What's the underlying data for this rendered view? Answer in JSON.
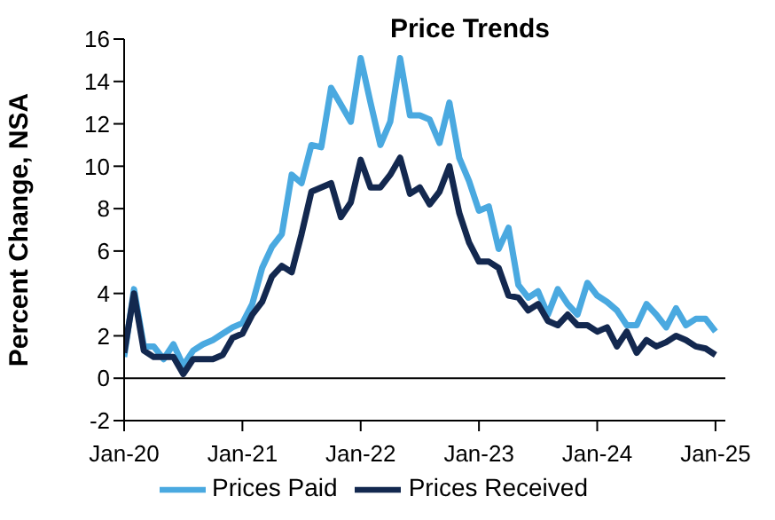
{
  "chart_data": {
    "type": "line",
    "title": "Price Trends",
    "ylabel": "Percent Change, NSA",
    "x": [
      "2020-01",
      "2020-02",
      "2020-03",
      "2020-04",
      "2020-05",
      "2020-06",
      "2020-07",
      "2020-08",
      "2020-09",
      "2020-10",
      "2020-11",
      "2020-12",
      "2021-01",
      "2021-02",
      "2021-03",
      "2021-04",
      "2021-05",
      "2021-06",
      "2021-07",
      "2021-08",
      "2021-09",
      "2021-10",
      "2021-11",
      "2021-12",
      "2022-01",
      "2022-02",
      "2022-03",
      "2022-04",
      "2022-05",
      "2022-06",
      "2022-07",
      "2022-08",
      "2022-09",
      "2022-10",
      "2022-11",
      "2022-12",
      "2023-01",
      "2023-02",
      "2023-03",
      "2023-04",
      "2023-05",
      "2023-06",
      "2023-07",
      "2023-08",
      "2023-09",
      "2023-10",
      "2023-11",
      "2023-12",
      "2024-01",
      "2024-02",
      "2024-03",
      "2024-04",
      "2024-05",
      "2024-06",
      "2024-07",
      "2024-08",
      "2024-09",
      "2024-10",
      "2024-11",
      "2024-12",
      "2025-01"
    ],
    "series": [
      {
        "name": "Prices Paid",
        "color": "#4aa9e0",
        "values": [
          1.0,
          4.2,
          1.5,
          1.5,
          0.9,
          1.6,
          0.6,
          1.3,
          1.6,
          1.8,
          2.1,
          2.4,
          2.6,
          3.5,
          5.2,
          6.2,
          6.8,
          9.6,
          9.2,
          11.0,
          10.9,
          13.7,
          12.9,
          12.1,
          15.1,
          13.0,
          11.0,
          12.1,
          15.1,
          12.4,
          12.4,
          12.2,
          11.1,
          13.0,
          10.4,
          9.3,
          7.9,
          8.1,
          6.1,
          7.1,
          4.4,
          3.8,
          4.1,
          3.0,
          4.2,
          3.5,
          3.0,
          4.5,
          3.9,
          3.6,
          3.2,
          2.5,
          2.5,
          3.5,
          3.0,
          2.4,
          3.3,
          2.5,
          2.8,
          2.8,
          2.2
        ]
      },
      {
        "name": "Prices Received",
        "color": "#13284f",
        "values": [
          1.2,
          4.0,
          1.3,
          1.0,
          1.0,
          1.0,
          0.2,
          0.9,
          0.9,
          0.9,
          1.1,
          1.9,
          2.1,
          3.0,
          3.6,
          4.8,
          5.3,
          5.0,
          6.8,
          8.8,
          9.0,
          9.2,
          7.6,
          8.3,
          10.3,
          9.0,
          9.0,
          9.6,
          10.4,
          8.7,
          9.0,
          8.2,
          8.8,
          10.0,
          7.8,
          6.4,
          5.5,
          5.5,
          5.2,
          3.9,
          3.8,
          3.2,
          3.5,
          2.7,
          2.5,
          3.0,
          2.5,
          2.5,
          2.2,
          2.4,
          1.5,
          2.2,
          1.2,
          1.8,
          1.5,
          1.7,
          2.0,
          1.8,
          1.5,
          1.4,
          1.1
        ]
      }
    ],
    "xlim": [
      "2020-01",
      "2025-02"
    ],
    "xticks": [
      {
        "value": "2020-01",
        "label": "Jan-20"
      },
      {
        "value": "2021-01",
        "label": "Jan-21"
      },
      {
        "value": "2022-01",
        "label": "Jan-22"
      },
      {
        "value": "2023-01",
        "label": "Jan-23"
      },
      {
        "value": "2024-01",
        "label": "Jan-24"
      },
      {
        "value": "2025-01",
        "label": "Jan-25"
      }
    ],
    "ylim": [
      -2,
      16
    ],
    "yticks": [
      -2,
      0,
      2,
      4,
      6,
      8,
      10,
      12,
      14,
      16
    ],
    "ref_lines": [
      {
        "axis": "y",
        "value": 0,
        "color": "#000000"
      }
    ],
    "legend": "bottom",
    "marker": "none",
    "line_style": "solid"
  }
}
